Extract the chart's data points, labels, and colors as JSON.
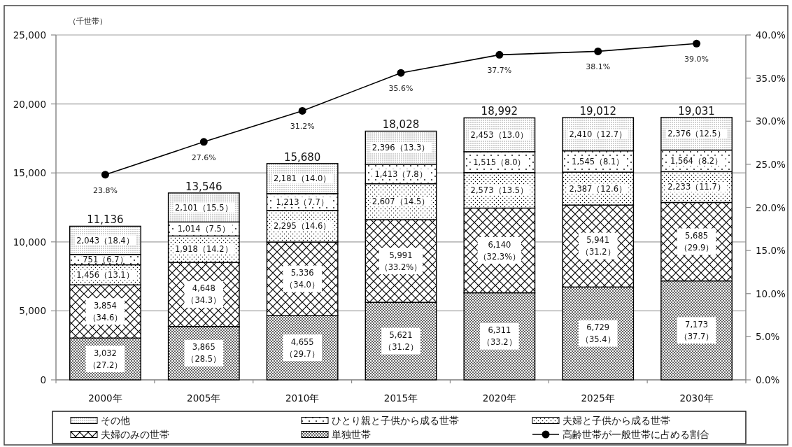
{
  "chart_data": {
    "type": "bar",
    "stacked": true,
    "categories": [
      "2000年",
      "2005年",
      "2010年",
      "2015年",
      "2020年",
      "2025年",
      "2030年"
    ],
    "ylabel": "（千世帯）",
    "ylim": [
      0,
      25000
    ],
    "yticks": [
      0,
      {
        "value": 5000,
        "label": "5,000"
      },
      {
        "value": 10000,
        "label": "10,000"
      },
      {
        "value": 15000,
        "label": "15,000"
      },
      {
        "value": 20000,
        "label": "20,000"
      },
      {
        "value": 25000,
        "label": "25,000"
      }
    ],
    "y2lim": [
      0,
      40
    ],
    "y2ticks": [
      {
        "value": 0,
        "label": "0.0%"
      },
      {
        "value": 5,
        "label": "5.0%"
      },
      {
        "value": 10,
        "label": "10.0%"
      },
      {
        "value": 15,
        "label": "15.0%"
      },
      {
        "value": 20,
        "label": "20.0%"
      },
      {
        "value": 25,
        "label": "25.0%"
      },
      {
        "value": 30,
        "label": "30.0%"
      },
      {
        "value": 35,
        "label": "35.0%"
      },
      {
        "value": 40,
        "label": "40.0%"
      }
    ],
    "grid": "y",
    "legend": "bottom",
    "totals": [
      "11,136",
      "13,546",
      "15,680",
      "18,028",
      "18,992",
      "19,012",
      "19,031"
    ],
    "series": [
      {
        "name": "単独世帯",
        "color": "#000000",
        "values": [
          3032,
          3865,
          4655,
          5621,
          6311,
          6729,
          7173
        ],
        "value_labels": [
          "3,032\n（27.2）",
          "3,865\n（28.5）",
          "4,655\n（29.7）",
          "5,621\n（31.2）",
          "6,311\n（33.2）",
          "6,729\n（35.4）",
          "7,173\n（37.7）"
        ]
      },
      {
        "name": "夫婦のみの世帯",
        "color": "#000000",
        "values": [
          3854,
          4648,
          5336,
          5991,
          6140,
          5941,
          5685
        ],
        "value_labels": [
          "3,854\n（34.6）",
          "4,648\n（34.3）",
          "5,336\n（34.0）",
          "5,991\n（33.2%）",
          "6,140\n（32.3%）",
          "5,941\n（31.2）",
          "5,685\n（29.9）"
        ]
      },
      {
        "name": "夫婦と子供から成る世帯",
        "color": "#000000",
        "values": [
          1456,
          1918,
          2295,
          2607,
          2573,
          2387,
          2233
        ],
        "value_labels": [
          "1,456（13.1）",
          "1,918（14.2）",
          "2,295（14.6）",
          "2,607（14.5）",
          "2,573（13.5）",
          "2,387（12.6）",
          "2,233（11.7）"
        ]
      },
      {
        "name": "ひとり親と子供から成る世帯",
        "color": "#000000",
        "values": [
          751,
          1014,
          1213,
          1413,
          1515,
          1545,
          1564
        ],
        "value_labels": [
          "751（6.7）",
          "1,014（7.5）",
          "1,213（7.7）",
          "1,413（7.8）",
          "1,515（8.0）",
          "1,545（8.1）",
          "1,564（8.2）"
        ]
      },
      {
        "name": "その他",
        "color": "#000000",
        "values": [
          2043,
          2101,
          2181,
          2396,
          2453,
          2410,
          2376
        ],
        "value_labels": [
          "2,043（18.4）",
          "2,101（15.5）",
          "2,181（14.0）",
          "2,396（13.3）",
          "2,453（13.0）",
          "2,410（12.7）",
          "2,376（12.5）"
        ]
      },
      {
        "name": "高齢世帯が一般世帯に占める割合",
        "type": "line",
        "axis": "y2",
        "marker": "circle",
        "color": "#000000",
        "values": [
          23.8,
          27.6,
          31.2,
          35.6,
          37.7,
          38.1,
          39.0
        ],
        "value_labels": [
          "23.8%",
          "27.6%",
          "31.2%",
          "35.6%",
          "37.7%",
          "38.1%",
          "39.0%"
        ]
      }
    ]
  }
}
